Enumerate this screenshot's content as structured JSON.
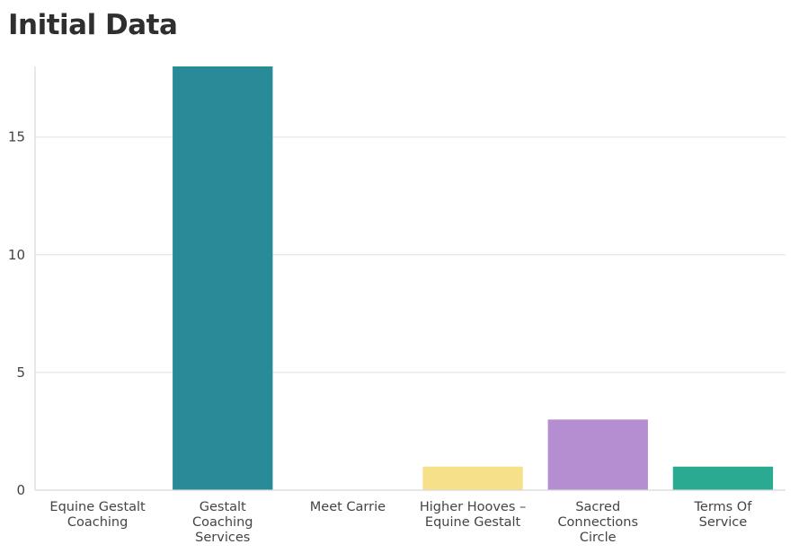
{
  "chart_data": {
    "type": "bar",
    "title": "Initial Data",
    "xlabel": "",
    "ylabel": "",
    "categories": [
      [
        "Equine Gestalt",
        "Coaching"
      ],
      [
        "Gestalt",
        "Coaching",
        "Services"
      ],
      [
        "Meet Carrie"
      ],
      [
        "Higher Hooves –",
        "Equine Gestalt"
      ],
      [
        "Sacred",
        "Connections",
        "Circle"
      ],
      [
        "Terms Of",
        "Service"
      ]
    ],
    "values": [
      0,
      18,
      0,
      1,
      3,
      1
    ],
    "colors": [
      "#2a8b98",
      "#2a8b98",
      "#2a8b98",
      "#f6e08a",
      "#b48ed0",
      "#2aaa90"
    ],
    "ylim": [
      0,
      18
    ],
    "yticks": [
      0,
      5,
      10,
      15
    ],
    "grid": true,
    "legend": "none"
  }
}
